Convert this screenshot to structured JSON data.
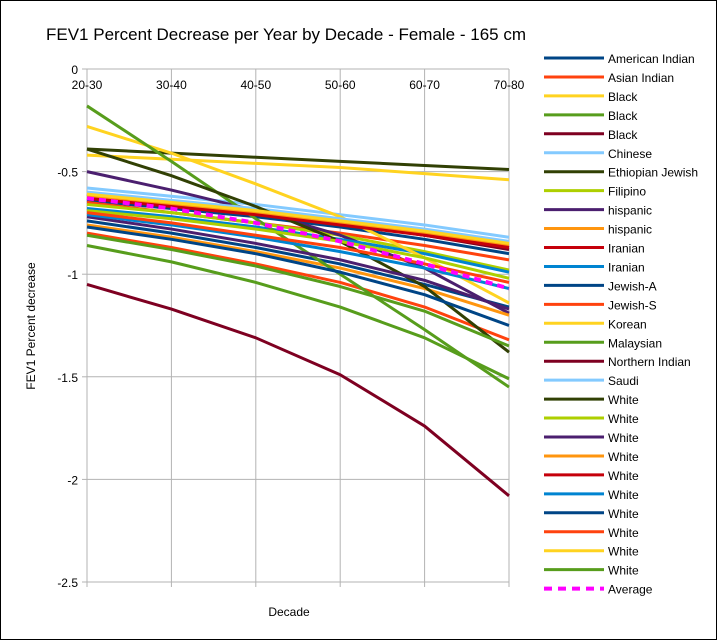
{
  "chart_data": {
    "type": "line",
    "title": "FEV1 Percent Decrease per Year by Decade - Female - 165 cm",
    "xlabel": "Decade",
    "ylabel": "FEV1 Percent decrease",
    "categories": [
      "20-30",
      "30-40",
      "40-50",
      "50-60",
      "60-70",
      "70-80"
    ],
    "ylim": [
      -2.5,
      0
    ],
    "yticks": [
      "0",
      "-0.5",
      "-1",
      "-1.5",
      "-2",
      "-2.5"
    ],
    "ytick_values": [
      0,
      -0.5,
      -1,
      -1.5,
      -2,
      -2.5
    ],
    "grid": true,
    "legend": "right",
    "series": [
      {
        "name": "American Indian",
        "color": "#004586",
        "values": [
          -0.64,
          -0.68,
          -0.72,
          -0.77,
          -0.83,
          -0.9
        ]
      },
      {
        "name": "Asian Indian",
        "color": "#ff420e",
        "values": [
          -0.65,
          -0.7,
          -0.75,
          -0.8,
          -0.86,
          -0.93
        ]
      },
      {
        "name": "Black",
        "color": "#ffd320",
        "values": [
          -0.42,
          -0.44,
          -0.46,
          -0.48,
          -0.51,
          -0.54
        ]
      },
      {
        "name": "Black",
        "color": "#579d1c",
        "values": [
          -0.86,
          -0.94,
          -1.04,
          -1.16,
          -1.31,
          -1.51
        ]
      },
      {
        "name": "Black",
        "color": "#7e0021",
        "values": [
          -0.61,
          -0.65,
          -0.7,
          -0.75,
          -0.81,
          -0.88
        ]
      },
      {
        "name": "Chinese",
        "color": "#83caff",
        "values": [
          -0.58,
          -0.62,
          -0.66,
          -0.71,
          -0.76,
          -0.82
        ]
      },
      {
        "name": "Ethiopian Jewish",
        "color": "#314004",
        "values": [
          -0.39,
          -0.41,
          -0.43,
          -0.45,
          -0.47,
          -0.49
        ]
      },
      {
        "name": "Filipino",
        "color": "#aecf00",
        "values": [
          -0.66,
          -0.7,
          -0.75,
          -0.81,
          -0.89,
          -0.98
        ]
      },
      {
        "name": "hispanic",
        "color": "#4b1f6f",
        "values": [
          -0.5,
          -0.59,
          -0.69,
          -0.81,
          -0.97,
          -1.19
        ]
      },
      {
        "name": "hispanic",
        "color": "#ff950e",
        "values": [
          -0.76,
          -0.82,
          -0.89,
          -0.97,
          -1.07,
          -1.2
        ]
      },
      {
        "name": "Iranian",
        "color": "#c5000b",
        "values": [
          -0.61,
          -0.65,
          -0.7,
          -0.75,
          -0.81,
          -0.87
        ]
      },
      {
        "name": "Iranian",
        "color": "#0084d1",
        "values": [
          -0.68,
          -0.72,
          -0.77,
          -0.83,
          -0.9,
          -0.99
        ]
      },
      {
        "name": "Jewish-A",
        "color": "#004586",
        "values": [
          -0.74,
          -0.8,
          -0.87,
          -0.95,
          -1.05,
          -1.16
        ]
      },
      {
        "name": "Jewish-S",
        "color": "#ff420e",
        "values": [
          -0.8,
          -0.87,
          -0.95,
          -1.04,
          -1.16,
          -1.32
        ]
      },
      {
        "name": "Korean",
        "color": "#ffd320",
        "values": [
          -0.28,
          -0.41,
          -0.56,
          -0.72,
          -0.92,
          -1.14
        ]
      },
      {
        "name": "Malaysian",
        "color": "#579d1c",
        "values": [
          -0.18,
          -0.45,
          -0.73,
          -1.0,
          -1.27,
          -1.55
        ]
      },
      {
        "name": "Northern Indian",
        "color": "#7e0021",
        "values": [
          -1.05,
          -1.17,
          -1.31,
          -1.49,
          -1.74,
          -2.08
        ]
      },
      {
        "name": "Saudi",
        "color": "#83caff",
        "values": [
          -0.6,
          -0.64,
          -0.68,
          -0.73,
          -0.78,
          -0.84
        ]
      },
      {
        "name": "White",
        "color": "#314004",
        "values": [
          -0.39,
          -0.52,
          -0.67,
          -0.84,
          -1.06,
          -1.38
        ]
      },
      {
        "name": "White",
        "color": "#aecf00",
        "values": [
          -0.69,
          -0.73,
          -0.78,
          -0.84,
          -0.92,
          -1.02
        ]
      },
      {
        "name": "White",
        "color": "#4b1f6f",
        "values": [
          -0.72,
          -0.78,
          -0.85,
          -0.93,
          -1.03,
          -1.17
        ]
      },
      {
        "name": "White",
        "color": "#ff950e",
        "values": [
          -0.62,
          -0.66,
          -0.7,
          -0.75,
          -0.8,
          -0.86
        ]
      },
      {
        "name": "White",
        "color": "#c5000b",
        "values": [
          -0.63,
          -0.67,
          -0.71,
          -0.76,
          -0.81,
          -0.87
        ]
      },
      {
        "name": "White",
        "color": "#0084d1",
        "values": [
          -0.71,
          -0.76,
          -0.82,
          -0.89,
          -0.97,
          -1.07
        ]
      },
      {
        "name": "White",
        "color": "#004586",
        "values": [
          -0.77,
          -0.83,
          -0.9,
          -0.99,
          -1.1,
          -1.25
        ]
      },
      {
        "name": "White",
        "color": "#ff420e",
        "values": [
          -0.7,
          -0.75,
          -0.81,
          -0.87,
          -0.95,
          -1.04
        ]
      },
      {
        "name": "White",
        "color": "#ffd320",
        "values": [
          -0.61,
          -0.65,
          -0.69,
          -0.74,
          -0.79,
          -0.85
        ]
      },
      {
        "name": "White",
        "color": "#579d1c",
        "values": [
          -0.81,
          -0.88,
          -0.96,
          -1.06,
          -1.18,
          -1.35
        ]
      },
      {
        "name": "Average",
        "color": "#ff00ff",
        "dashed": true,
        "values": [
          -0.63,
          -0.68,
          -0.75,
          -0.84,
          -0.95,
          -1.07
        ]
      }
    ]
  }
}
